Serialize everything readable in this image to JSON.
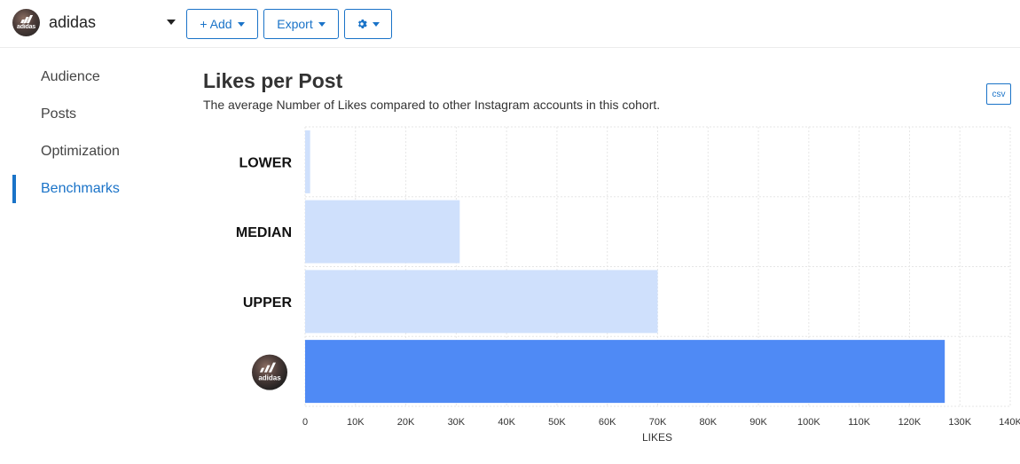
{
  "account": {
    "name": "adidas",
    "avatar_text": "adidas"
  },
  "toolbar": {
    "add_label": "+ Add",
    "export_label": "Export"
  },
  "sidebar": {
    "items": [
      {
        "label": "Audience",
        "active": false
      },
      {
        "label": "Posts",
        "active": false
      },
      {
        "label": "Optimization",
        "active": false
      },
      {
        "label": "Benchmarks",
        "active": true
      }
    ]
  },
  "main": {
    "title": "Likes per Post",
    "subtitle": "The average Number of Likes compared to other Instagram accounts in this cohort.",
    "csv_label": "csv"
  },
  "colors": {
    "accent": "#1a73c8",
    "bar_cohort": "#cfe0fc",
    "bar_account": "#4f8af5",
    "grid": "#e6e6e6"
  },
  "chart_data": {
    "type": "bar",
    "orientation": "horizontal",
    "categories": [
      "LOWER",
      "MEDIAN",
      "UPPER",
      ""
    ],
    "values": [
      1000,
      30700,
      70000,
      127000
    ],
    "xlabel": "LIKES",
    "ylabel": "",
    "xlim": [
      0,
      140000
    ],
    "xticks": [
      0,
      10000,
      20000,
      30000,
      40000,
      50000,
      60000,
      70000,
      80000,
      90000,
      100000,
      110000,
      120000,
      130000,
      140000
    ],
    "xtick_labels": [
      "0",
      "10K",
      "20K",
      "30K",
      "40K",
      "50K",
      "60K",
      "70K",
      "80K",
      "90K",
      "100K",
      "110K",
      "120K",
      "130K",
      "140K"
    ],
    "grid": true,
    "last_category_is_account_avatar": true
  }
}
